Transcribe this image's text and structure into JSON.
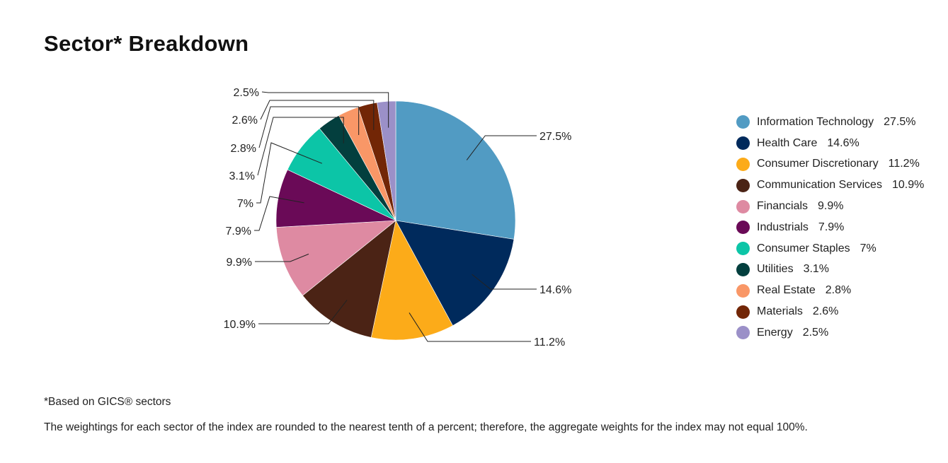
{
  "page": {
    "title": "Sector* Breakdown",
    "footnote": "*Based on GICS® sectors",
    "disclaimer": "The weightings for each sector of the index are rounded to the nearest tenth of a percent; therefore, the aggregate weights for the index may not equal 100%."
  },
  "chart_data": {
    "type": "pie",
    "title": "Sector* Breakdown",
    "legend_position": "right",
    "slices": [
      {
        "label": "Information Technology",
        "value": 27.5,
        "display": "27.5%",
        "color": "#519bc3"
      },
      {
        "label": "Health Care",
        "value": 14.6,
        "display": "14.6%",
        "color": "#002a5c"
      },
      {
        "label": "Consumer Discretionary",
        "value": 11.2,
        "display": "11.2%",
        "color": "#fcab19"
      },
      {
        "label": "Communication Services",
        "value": 10.9,
        "display": "10.9%",
        "color": "#4b2315"
      },
      {
        "label": "Financials",
        "value": 9.9,
        "display": "9.9%",
        "color": "#de8aa2"
      },
      {
        "label": "Industrials",
        "value": 7.9,
        "display": "7.9%",
        "color": "#6a0a57"
      },
      {
        "label": "Consumer Staples",
        "value": 7,
        "display": "7%",
        "color": "#0cc5a7"
      },
      {
        "label": "Utilities",
        "value": 3.1,
        "display": "3.1%",
        "color": "#033f3e"
      },
      {
        "label": "Real Estate",
        "value": 2.8,
        "display": "2.8%",
        "color": "#f99767"
      },
      {
        "label": "Materials",
        "value": 2.6,
        "display": "2.6%",
        "color": "#722606"
      },
      {
        "label": "Energy",
        "value": 2.5,
        "display": "2.5%",
        "color": "#9b90c8"
      }
    ]
  }
}
